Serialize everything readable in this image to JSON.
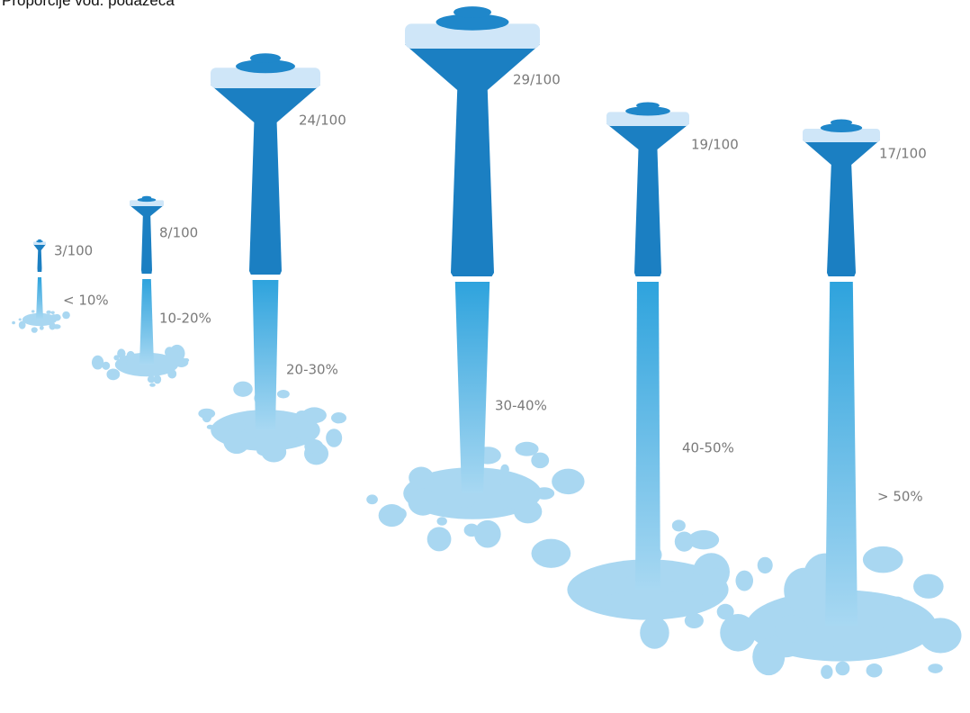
{
  "title": "Proporcije vod. podazeća",
  "items": [
    {
      "ratio": "3/100",
      "range": "< 10%"
    },
    {
      "ratio": "8/100",
      "range": "10-20%"
    },
    {
      "ratio": "24/100",
      "range": "20-30%"
    },
    {
      "ratio": "29/100",
      "range": "30-40%"
    },
    {
      "ratio": "19/100",
      "range": "40-50%"
    },
    {
      "ratio": "17/100",
      "range": "> 50%"
    }
  ]
}
